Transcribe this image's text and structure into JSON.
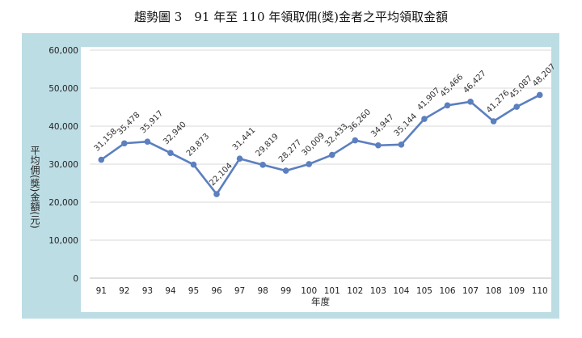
{
  "title": "趨勢圖 3　91 年至 110 年領取佣(獎)金者之平均領取金額",
  "chart_data": {
    "type": "line",
    "title": "趨勢圖 3　91 年至 110 年領取佣(獎)金者之平均領取金額",
    "xlabel": "年度",
    "ylabel": "平均佣(獎)金額(元)",
    "ylim": [
      0,
      60000
    ],
    "yticks": [
      "0",
      "10,000",
      "20,000",
      "30,000",
      "40,000",
      "50,000",
      "60,000"
    ],
    "categories": [
      "91",
      "92",
      "93",
      "94",
      "95",
      "96",
      "97",
      "98",
      "99",
      "100",
      "101",
      "102",
      "103",
      "104",
      "105",
      "106",
      "107",
      "108",
      "109",
      "110"
    ],
    "values": [
      31158,
      35478,
      35917,
      32940,
      29873,
      22104,
      31441,
      29819,
      28277,
      30009,
      32433,
      36260,
      34947,
      35144,
      41907,
      45466,
      46427,
      41276,
      45087,
      48207
    ],
    "data_labels": [
      "31,158",
      "35,478",
      "35,917",
      "32,940",
      "29,873",
      "22,104",
      "31,441",
      "29,819",
      "28,277",
      "30,009",
      "32,433",
      "36,260",
      "34,947",
      "35,144",
      "41,907",
      "45,466",
      "46,427",
      "41,276",
      "45,087",
      "48,207"
    ],
    "line_color": "#5b7fbf",
    "background_color": "#bddde5",
    "grid": true
  }
}
